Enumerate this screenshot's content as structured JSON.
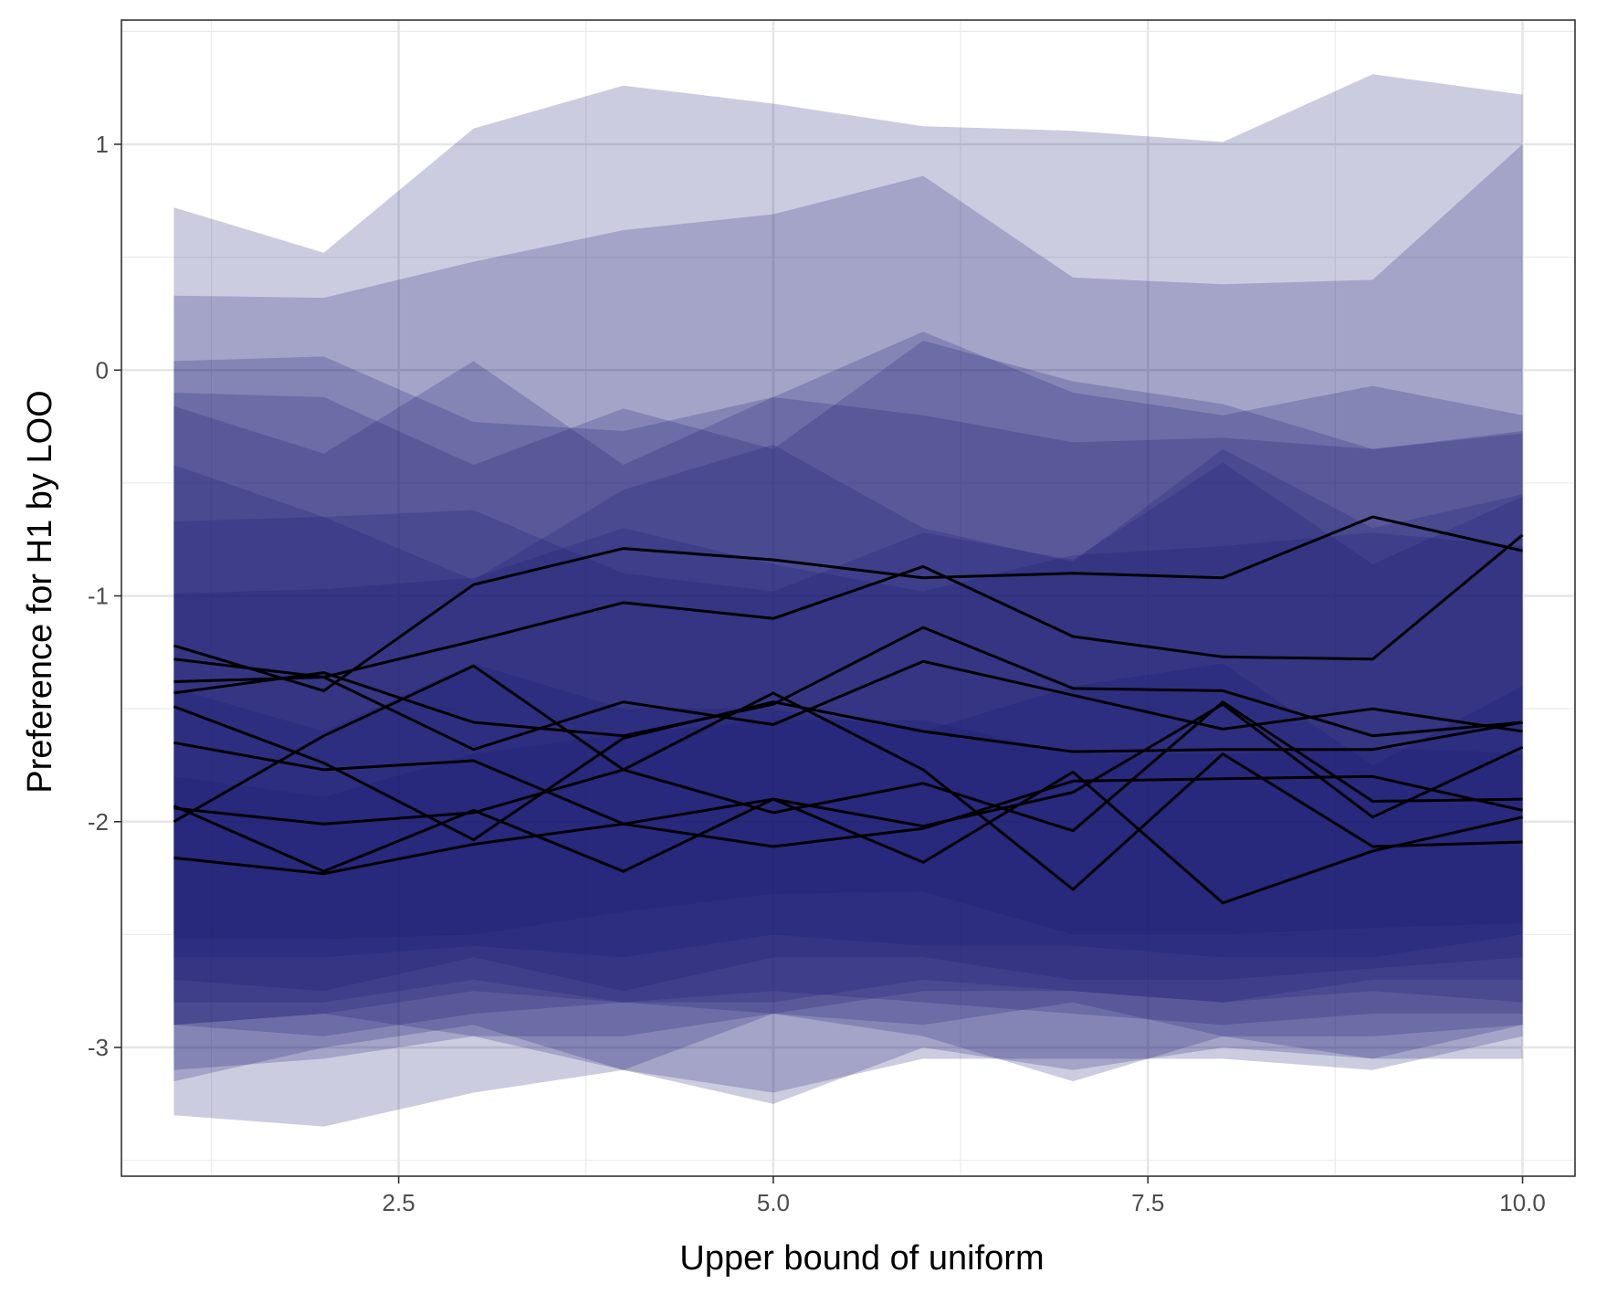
{
  "chart_data": {
    "type": "area",
    "xlabel": "Upper bound of uniform",
    "ylabel": "Preference for H1 by LOO",
    "xlim": [
      0.65,
      10.35
    ],
    "ylim": [
      -3.57,
      1.55
    ],
    "x": [
      1,
      2,
      3,
      4,
      5,
      6,
      7,
      8,
      9,
      10
    ],
    "x_ticks": [
      2.5,
      5.0,
      7.5,
      10.0
    ],
    "x_tick_labels": [
      "2.5",
      "5.0",
      "7.5",
      "10.0"
    ],
    "y_ticks": [
      -3,
      -2,
      -1,
      0,
      1
    ],
    "y_tick_labels": [
      "-3",
      "-2",
      "-1",
      "0",
      "1"
    ],
    "grid": true,
    "theme": "bw",
    "band_color": "#191970",
    "band_opacity": 0.22,
    "line_color": "#000000",
    "series": [
      {
        "values": [
          -1.22,
          -1.42,
          -0.95,
          -0.79,
          -0.84,
          -0.92,
          -0.9,
          -0.92,
          -0.65,
          -0.8
        ],
        "lower": [
          -2.9,
          -2.95,
          -2.85,
          -2.8,
          -2.75,
          -2.8,
          -2.85,
          -2.9,
          -2.85,
          -2.85
        ],
        "upper": [
          0.72,
          0.52,
          1.07,
          1.26,
          1.18,
          1.08,
          1.06,
          1.01,
          1.31,
          1.22
        ]
      },
      {
        "values": [
          -1.38,
          -1.36,
          -1.2,
          -1.03,
          -1.1,
          -0.87,
          -1.18,
          -1.27,
          -1.28,
          -0.73
        ],
        "lower": [
          -3.1,
          -3.05,
          -2.95,
          -3.1,
          -3.2,
          -3.05,
          -3.05,
          -3.05,
          -3.1,
          -2.95
        ],
        "upper": [
          0.33,
          0.32,
          0.48,
          0.62,
          0.69,
          0.86,
          0.41,
          0.38,
          0.4,
          1.0
        ]
      },
      {
        "values": [
          -1.43,
          -1.34,
          -1.56,
          -1.62,
          -1.48,
          -1.14,
          -1.41,
          -1.42,
          -1.62,
          -1.56
        ],
        "lower": [
          -3.3,
          -3.35,
          -3.2,
          -3.1,
          -3.25,
          -3.0,
          -3.1,
          -3.0,
          -3.05,
          -3.05
        ],
        "upper": [
          0.04,
          0.06,
          -0.23,
          -0.27,
          -0.12,
          0.17,
          -0.1,
          -0.2,
          -0.07,
          -0.2
        ]
      },
      {
        "values": [
          -1.28,
          -1.36,
          -1.68,
          -1.47,
          -1.57,
          -1.29,
          -1.44,
          -1.59,
          -1.5,
          -1.6
        ],
        "lower": [
          -3.15,
          -3.0,
          -2.9,
          -3.1,
          -2.85,
          -2.95,
          -3.15,
          -2.95,
          -3.05,
          -2.9
        ],
        "upper": [
          -0.1,
          -0.12,
          -0.42,
          -0.17,
          -0.35,
          0.13,
          -0.05,
          -0.15,
          -0.35,
          -0.28
        ]
      },
      {
        "values": [
          -1.49,
          -1.74,
          -2.08,
          -1.63,
          -1.47,
          -1.6,
          -1.69,
          -1.68,
          -1.68,
          -1.56
        ],
        "lower": [
          -2.9,
          -2.85,
          -2.95,
          -2.95,
          -2.85,
          -2.9,
          -2.8,
          -2.95,
          -2.95,
          -2.9
        ],
        "upper": [
          -0.16,
          -0.37,
          0.04,
          -0.42,
          -0.12,
          -0.2,
          -0.32,
          -0.3,
          -0.35,
          -0.27
        ]
      },
      {
        "values": [
          -1.65,
          -1.77,
          -1.73,
          -2.01,
          -1.9,
          -2.02,
          -1.87,
          -1.48,
          -1.98,
          -1.67
        ],
        "lower": [
          -2.9,
          -2.85,
          -2.75,
          -2.8,
          -2.85,
          -2.75,
          -2.75,
          -2.8,
          -2.75,
          -2.8
        ],
        "upper": [
          -0.42,
          -0.65,
          -0.93,
          -0.53,
          -0.33,
          -0.7,
          -0.85,
          -0.35,
          -0.7,
          -0.55
        ]
      },
      {
        "values": [
          -1.94,
          -2.01,
          -1.96,
          -1.77,
          -1.96,
          -1.83,
          -2.04,
          -1.47,
          -1.91,
          -1.9
        ],
        "lower": [
          -2.8,
          -2.8,
          -2.7,
          -2.8,
          -2.8,
          -2.7,
          -2.75,
          -2.8,
          -2.7,
          -2.7
        ],
        "upper": [
          -0.67,
          -0.65,
          -0.62,
          -0.9,
          -0.98,
          -0.72,
          -0.84,
          -0.41,
          -0.86,
          -0.56
        ]
      },
      {
        "values": [
          -1.93,
          -2.22,
          -1.95,
          -2.22,
          -1.9,
          -2.18,
          -1.78,
          -2.36,
          -2.13,
          -1.98
        ],
        "lower": [
          -2.7,
          -2.75,
          -2.6,
          -2.75,
          -2.6,
          -2.6,
          -2.7,
          -2.7,
          -2.65,
          -2.6
        ],
        "upper": [
          -0.99,
          -0.97,
          -0.92,
          -0.7,
          -0.86,
          -0.98,
          -0.82,
          -0.78,
          -0.72,
          -0.78
        ]
      },
      {
        "values": [
          -2.0,
          -1.62,
          -1.31,
          -1.77,
          -1.43,
          -1.77,
          -2.3,
          -1.7,
          -2.11,
          -2.09
        ],
        "lower": [
          -2.6,
          -2.6,
          -2.55,
          -2.6,
          -2.5,
          -2.55,
          -2.55,
          -2.6,
          -2.6,
          -2.5
        ],
        "upper": [
          -1.41,
          -1.6,
          -1.3,
          -1.5,
          -1.5,
          -1.6,
          -1.4,
          -1.3,
          -1.75,
          -1.4
        ]
      },
      {
        "values": [
          -2.16,
          -2.23,
          -2.1,
          -2.01,
          -2.11,
          -2.03,
          -1.82,
          -1.81,
          -1.8,
          -1.95
        ],
        "lower": [
          -2.52,
          -2.52,
          -2.5,
          -2.4,
          -2.32,
          -2.31,
          -2.5,
          -2.5,
          -2.47,
          -2.45
        ],
        "upper": [
          -1.8,
          -1.89,
          -1.7,
          -1.61,
          -1.55,
          -1.55,
          -1.7,
          -1.7,
          -1.67,
          -1.7
        ]
      }
    ]
  }
}
